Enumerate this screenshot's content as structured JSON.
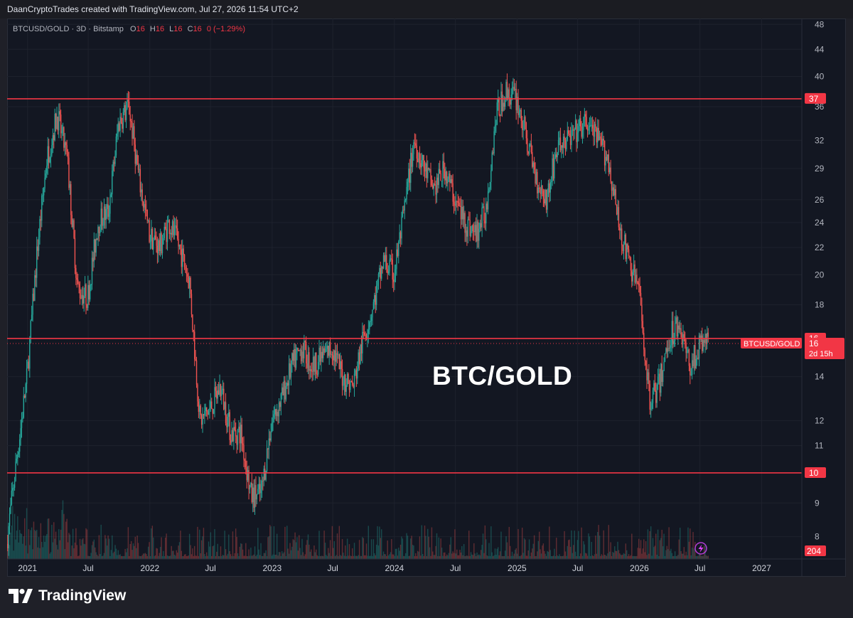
{
  "credit": "DaanCryptoTrades created with TradingView.com, Jul 27, 2026 11:54 UTC+2",
  "symbol": {
    "name": "BTCUSD/GOLD · 3D · Bitstamp",
    "o_label": "O",
    "o": "16",
    "h_label": "H",
    "h": "16",
    "l_label": "L",
    "l": "16",
    "c_label": "C",
    "c": "16",
    "change": "0 (−1.29%)"
  },
  "overlay_text": "BTC/GOLD",
  "branding": "TradingView",
  "colors": {
    "up": "#26a69a",
    "down": "#ef5350",
    "level_line": "#f23645",
    "background": "#131722",
    "grid": "#1e222d"
  },
  "price_tag": {
    "symbol": "BTCUSD/GOLD",
    "value": "16",
    "countdown": "2d 15h"
  },
  "volume_tag": "204",
  "icon": "lightning-icon",
  "chart_data": {
    "type": "candlestick",
    "scale": "log",
    "ylim": [
      7.4,
      49
    ],
    "y_ticks": [
      48,
      44,
      40,
      36,
      32,
      29,
      26,
      24,
      22,
      20,
      18,
      16,
      14,
      12,
      11,
      10,
      9,
      8
    ],
    "x_range": [
      "2020-11",
      "2027-05"
    ],
    "x_ticks": [
      {
        "label": "2021",
        "date": "2021-01-01"
      },
      {
        "label": "Jul",
        "date": "2021-07-01"
      },
      {
        "label": "2022",
        "date": "2022-01-01"
      },
      {
        "label": "Jul",
        "date": "2022-07-01"
      },
      {
        "label": "2023",
        "date": "2023-01-01"
      },
      {
        "label": "Jul",
        "date": "2023-07-01"
      },
      {
        "label": "2024",
        "date": "2024-01-01"
      },
      {
        "label": "Jul",
        "date": "2024-07-01"
      },
      {
        "label": "2025",
        "date": "2025-01-01"
      },
      {
        "label": "Jul",
        "date": "2025-07-01"
      },
      {
        "label": "2026",
        "date": "2026-01-01"
      },
      {
        "label": "Jul",
        "date": "2026-07-01"
      },
      {
        "label": "2027",
        "date": "2027-01-01"
      }
    ],
    "horizontal_levels": [
      {
        "value": 37,
        "label": "37"
      },
      {
        "value": 16,
        "label": "16"
      },
      {
        "value": 10,
        "label": "10"
      }
    ],
    "price_path": [
      [
        "2020-11-01",
        7.8
      ],
      [
        "2020-12-01",
        10.5
      ],
      [
        "2021-01-01",
        14
      ],
      [
        "2021-02-01",
        22
      ],
      [
        "2021-03-01",
        30
      ],
      [
        "2021-04-01",
        35
      ],
      [
        "2021-05-01",
        30
      ],
      [
        "2021-06-01",
        19
      ],
      [
        "2021-07-01",
        18.5
      ],
      [
        "2021-08-01",
        24
      ],
      [
        "2021-09-01",
        25
      ],
      [
        "2021-10-01",
        34
      ],
      [
        "2021-11-01",
        36
      ],
      [
        "2021-12-01",
        28
      ],
      [
        "2022-01-01",
        23
      ],
      [
        "2022-02-01",
        22
      ],
      [
        "2022-03-01",
        24
      ],
      [
        "2022-04-01",
        22
      ],
      [
        "2022-05-01",
        19.5
      ],
      [
        "2022-06-01",
        12
      ],
      [
        "2022-07-01",
        12.5
      ],
      [
        "2022-08-01",
        13.5
      ],
      [
        "2022-09-01",
        11.5
      ],
      [
        "2022-10-01",
        11.5
      ],
      [
        "2022-11-01",
        9.2
      ],
      [
        "2022-12-01",
        9.3
      ],
      [
        "2023-01-01",
        12
      ],
      [
        "2023-02-01",
        13
      ],
      [
        "2023-03-01",
        14.5
      ],
      [
        "2023-04-01",
        15.5
      ],
      [
        "2023-05-01",
        14.5
      ],
      [
        "2023-06-01",
        15
      ],
      [
        "2023-07-01",
        15.5
      ],
      [
        "2023-08-01",
        14
      ],
      [
        "2023-09-01",
        13.5
      ],
      [
        "2023-10-01",
        16
      ],
      [
        "2023-11-01",
        18
      ],
      [
        "2023-12-01",
        21
      ],
      [
        "2024-01-01",
        20
      ],
      [
        "2024-02-01",
        25
      ],
      [
        "2024-03-01",
        32
      ],
      [
        "2024-04-01",
        29
      ],
      [
        "2024-05-01",
        27
      ],
      [
        "2024-06-01",
        29
      ],
      [
        "2024-07-01",
        26
      ],
      [
        "2024-08-01",
        24
      ],
      [
        "2024-09-01",
        23
      ],
      [
        "2024-10-01",
        25
      ],
      [
        "2024-11-01",
        35
      ],
      [
        "2024-12-01",
        38
      ],
      [
        "2025-01-01",
        37
      ],
      [
        "2025-02-01",
        32
      ],
      [
        "2025-03-01",
        28
      ],
      [
        "2025-04-01",
        26
      ],
      [
        "2025-05-01",
        31
      ],
      [
        "2025-06-01",
        32
      ],
      [
        "2025-07-01",
        33
      ],
      [
        "2025-08-01",
        34
      ],
      [
        "2025-09-01",
        32
      ],
      [
        "2025-10-01",
        30
      ],
      [
        "2025-11-01",
        24
      ],
      [
        "2025-12-01",
        21
      ],
      [
        "2026-01-01",
        19
      ],
      [
        "2026-02-01",
        13
      ],
      [
        "2026-03-01",
        13.5
      ],
      [
        "2026-04-01",
        16
      ],
      [
        "2026-05-01",
        17
      ],
      [
        "2026-06-01",
        14.5
      ],
      [
        "2026-07-01",
        15.5
      ],
      [
        "2026-07-25",
        16
      ]
    ]
  }
}
